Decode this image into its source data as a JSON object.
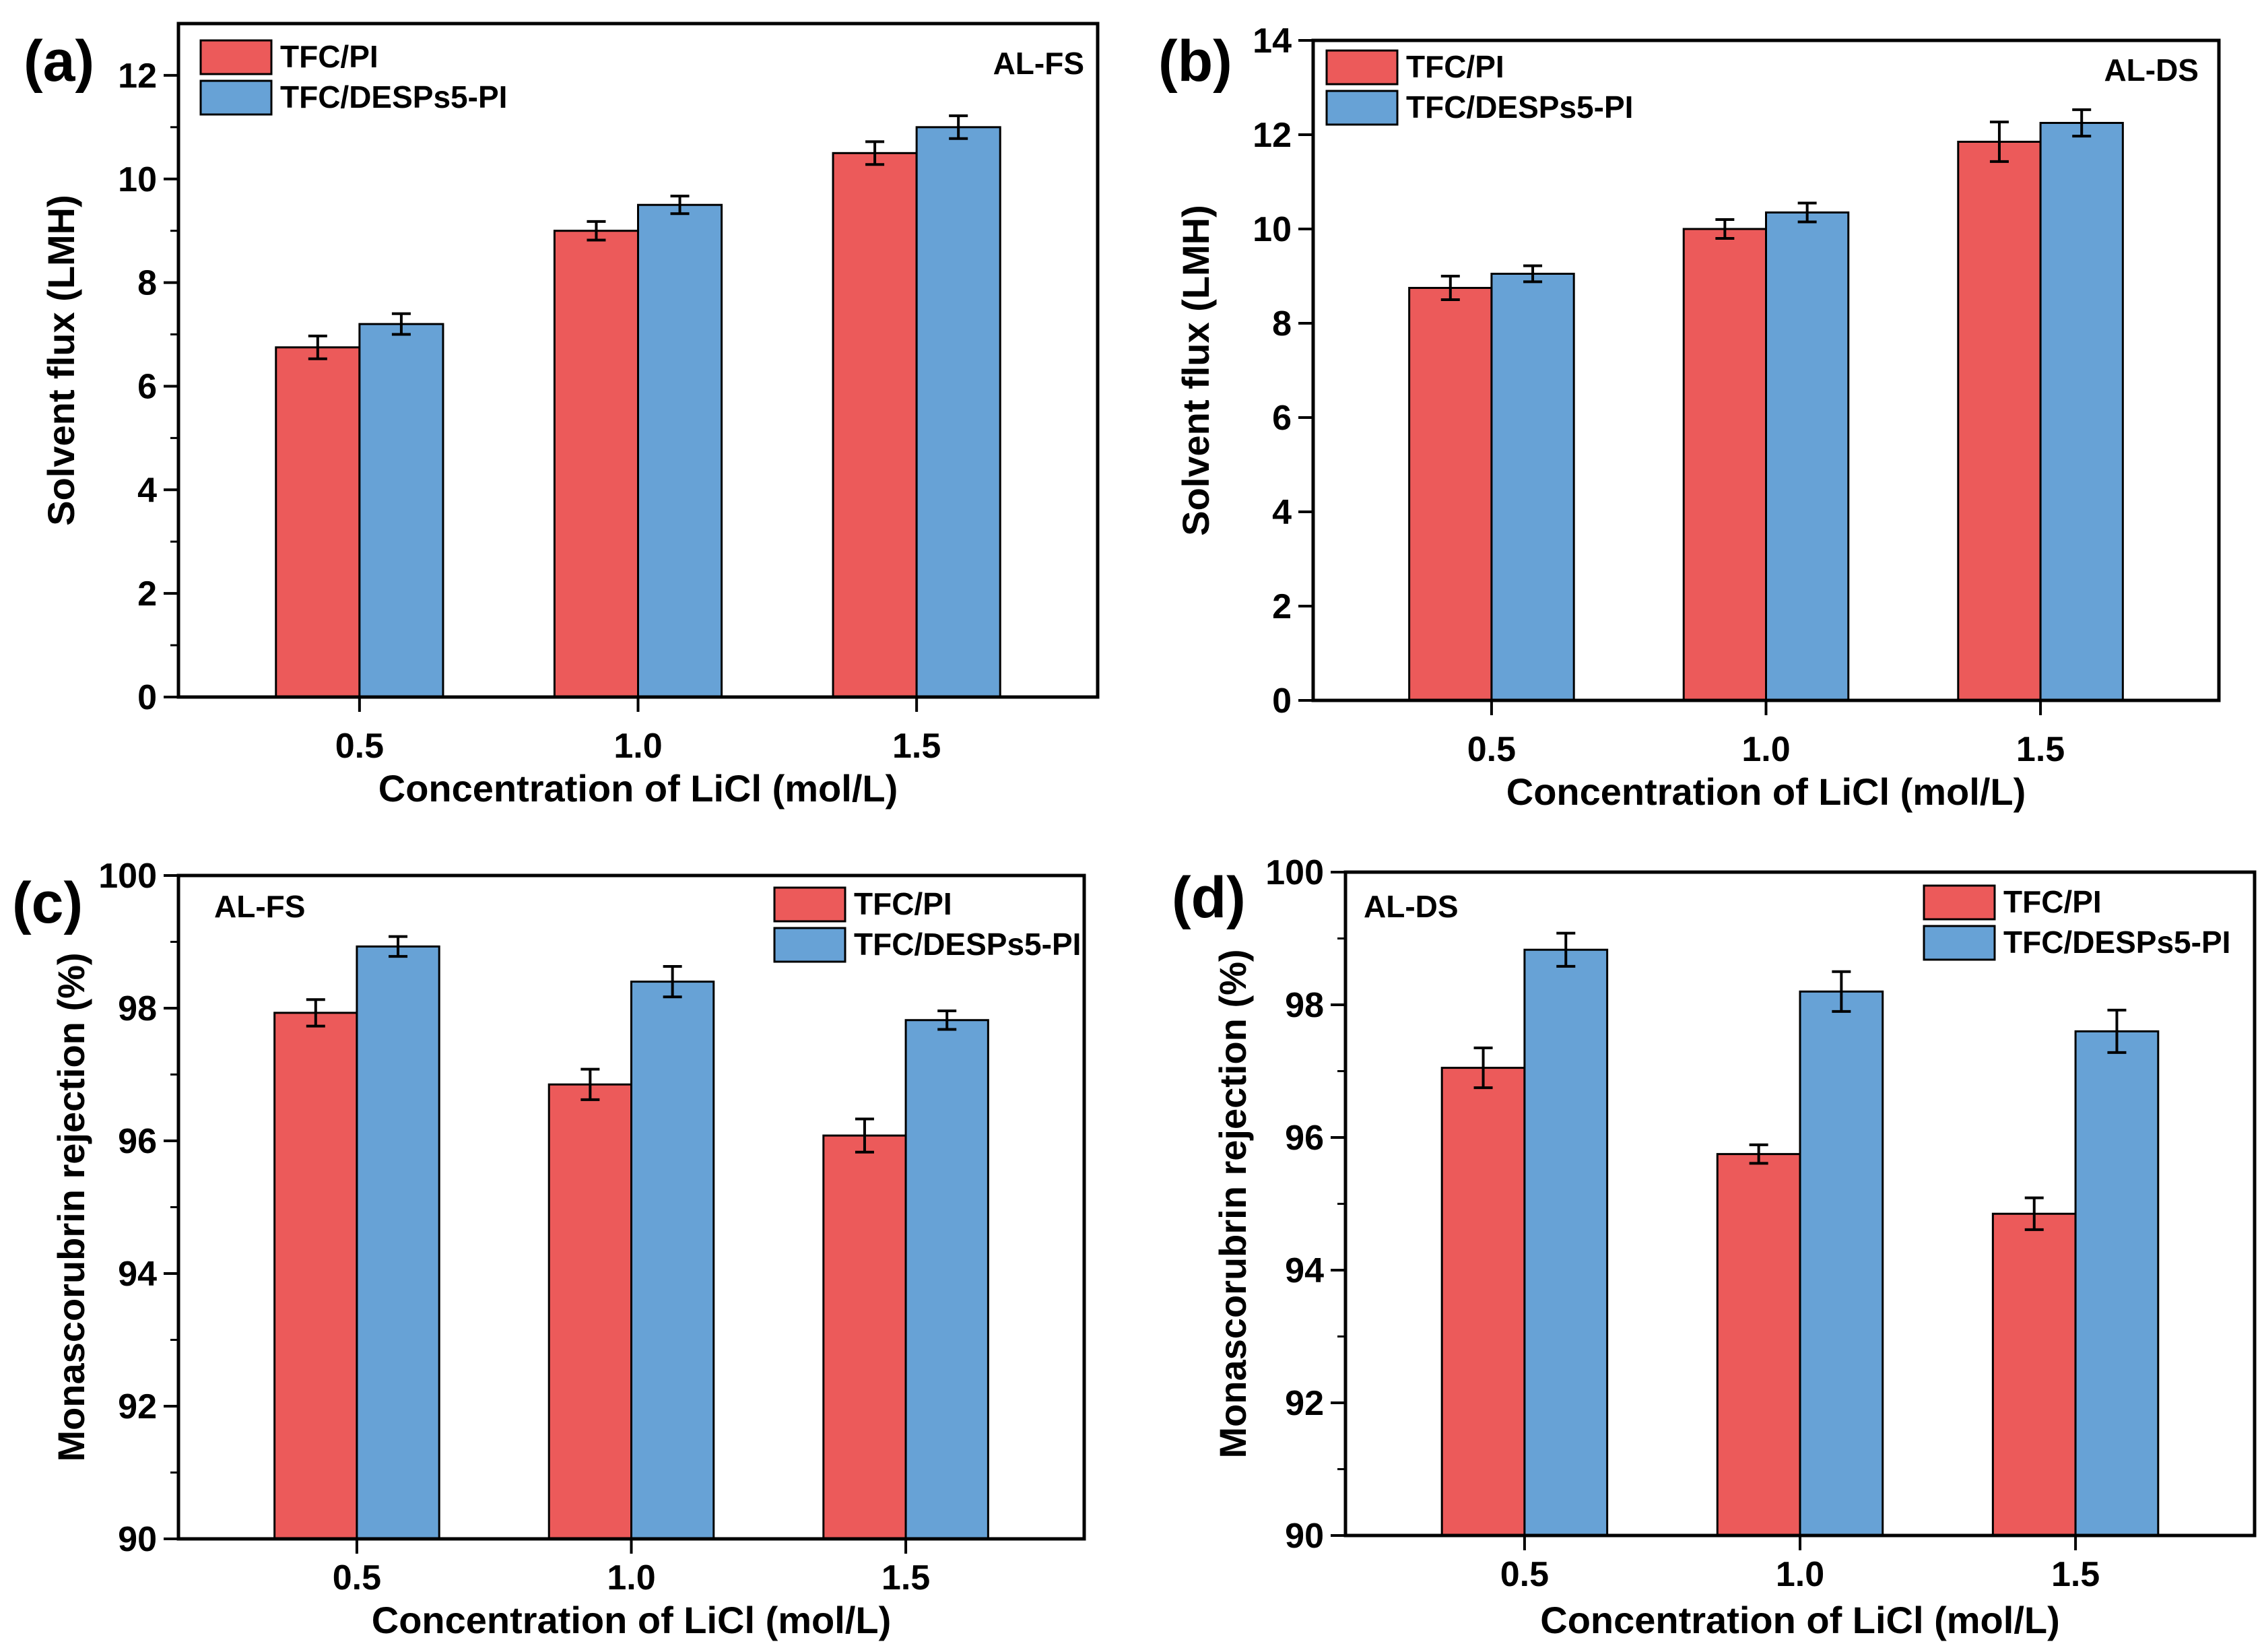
{
  "colors": {
    "tfc_pi": "#EC5A5A",
    "tfc_desps5_pi": "#67A2D6",
    "axis": "#000000",
    "error_bar": "#000000"
  },
  "chart_data": [
    {
      "id": "a",
      "panel_label": "(a)",
      "type": "bar",
      "condition": "AL-FS",
      "xlabel": "Concentration of LiCl (mol/L)",
      "ylabel": "Solvent flux (LMH)",
      "categories": [
        "0.5",
        "1.0",
        "1.5"
      ],
      "ylim": [
        0,
        13
      ],
      "yticks": [
        "0",
        "2",
        "4",
        "6",
        "8",
        "10",
        "12"
      ],
      "ytick_values": [
        0,
        2,
        4,
        6,
        8,
        10,
        12
      ],
      "legend": {
        "placement": "top-left"
      },
      "series": [
        {
          "name": "TFC/PI",
          "values": [
            6.75,
            9.0,
            10.5
          ],
          "errors": [
            0.22,
            0.18,
            0.22
          ]
        },
        {
          "name": "TFC/DESPs5-PI",
          "values": [
            7.2,
            9.5,
            11.0
          ],
          "errors": [
            0.2,
            0.17,
            0.22
          ]
        }
      ]
    },
    {
      "id": "b",
      "panel_label": "(b)",
      "type": "bar",
      "condition": "AL-DS",
      "xlabel": "Concentration of LiCl (mol/L)",
      "ylabel": "Solvent flux (LMH)",
      "categories": [
        "0.5",
        "1.0",
        "1.5"
      ],
      "ylim": [
        0,
        14
      ],
      "yticks": [
        "0",
        "2",
        "4",
        "6",
        "8",
        "10",
        "12",
        "14"
      ],
      "ytick_values": [
        0,
        2,
        4,
        6,
        8,
        10,
        12,
        14
      ],
      "legend": {
        "placement": "top-left"
      },
      "series": [
        {
          "name": "TFC/PI",
          "values": [
            8.75,
            10.0,
            11.85
          ],
          "errors": [
            0.25,
            0.2,
            0.42
          ]
        },
        {
          "name": "TFC/DESPs5-PI",
          "values": [
            9.05,
            10.35,
            12.25
          ],
          "errors": [
            0.17,
            0.2,
            0.28
          ]
        }
      ]
    },
    {
      "id": "c",
      "panel_label": "(c)",
      "type": "bar",
      "condition": "AL-FS",
      "xlabel": "Concentration of LiCl (mol/L)",
      "ylabel": "Monascorubrin rejection (%)",
      "categories": [
        "0.5",
        "1.0",
        "1.5"
      ],
      "ylim": [
        90,
        100
      ],
      "yticks": [
        "90",
        "92",
        "94",
        "96",
        "98",
        "100"
      ],
      "ytick_values": [
        90,
        92,
        94,
        96,
        98,
        100
      ],
      "legend": {
        "placement": "top-right"
      },
      "series": [
        {
          "name": "TFC/PI",
          "values": [
            97.93,
            96.85,
            96.08
          ],
          "errors": [
            0.2,
            0.23,
            0.25
          ]
        },
        {
          "name": "TFC/DESPs5-PI",
          "values": [
            98.93,
            98.4,
            97.82
          ],
          "errors": [
            0.15,
            0.23,
            0.14
          ]
        }
      ]
    },
    {
      "id": "d",
      "panel_label": "(d)",
      "type": "bar",
      "condition": "AL-DS",
      "xlabel": "Concentration of LiCl (mol/L)",
      "ylabel": "Monascorubrin rejection (%)",
      "categories": [
        "0.5",
        "1.0",
        "1.5"
      ],
      "ylim": [
        90,
        100
      ],
      "yticks": [
        "90",
        "92",
        "94",
        "96",
        "98",
        "100"
      ],
      "ytick_values": [
        90,
        92,
        94,
        96,
        98,
        100
      ],
      "legend": {
        "placement": "top-right"
      },
      "series": [
        {
          "name": "TFC/PI",
          "values": [
            97.05,
            95.75,
            94.85
          ],
          "errors": [
            0.3,
            0.14,
            0.24
          ]
        },
        {
          "name": "TFC/DESPs5-PI",
          "values": [
            98.83,
            98.2,
            97.6
          ],
          "errors": [
            0.25,
            0.3,
            0.32
          ]
        }
      ]
    }
  ]
}
